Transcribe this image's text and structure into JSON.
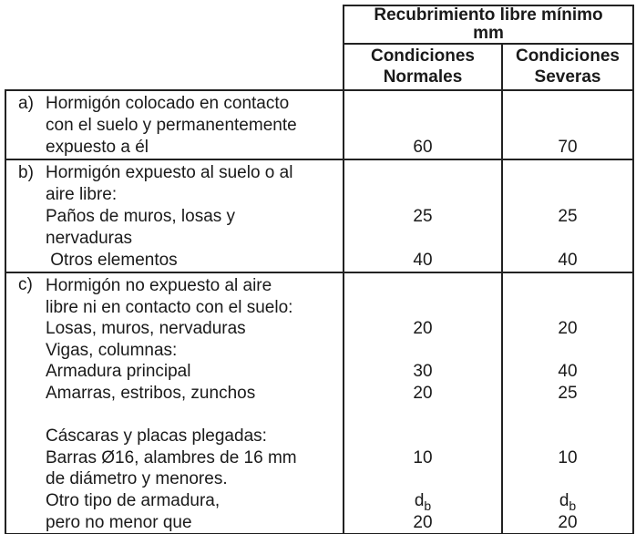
{
  "header": {
    "title_line1": "Recubrimiento libre mínimo",
    "title_line2": "mm",
    "normales_line1": "Condiciones",
    "normales_line2": "Normales",
    "severas_line1": "Condiciones",
    "severas_line2": "Severas"
  },
  "rows": [
    {
      "label": "a)",
      "lines": [
        {
          "text": "Hormigón colocado en contacto",
          "n": "",
          "s": ""
        },
        {
          "text": "con el suelo y permanentemente",
          "n": "",
          "s": ""
        },
        {
          "text": "expuesto a él",
          "n": "60",
          "s": "70"
        }
      ]
    },
    {
      "label": "b)",
      "lines": [
        {
          "text": "Hormigón expuesto al suelo o al",
          "n": "",
          "s": ""
        },
        {
          "text": "aire libre:",
          "n": "",
          "s": ""
        },
        {
          "text": "Paños de muros, losas y",
          "n": "25",
          "s": "25"
        },
        {
          "text": "nervaduras",
          "n": "",
          "s": ""
        },
        {
          "text": " Otros elementos",
          "n": "40",
          "s": "40"
        }
      ]
    },
    {
      "label": "c)",
      "lines": [
        {
          "text": "Hormigón no expuesto al aire",
          "n": "",
          "s": ""
        },
        {
          "text": "libre ni en contacto con el suelo:",
          "n": "",
          "s": ""
        },
        {
          "text": "Losas, muros, nervaduras",
          "n": "20",
          "s": "20"
        },
        {
          "text": "Vigas, columnas:",
          "n": "",
          "s": ""
        },
        {
          "text": "Armadura principal",
          "n": "30",
          "s": "40"
        },
        {
          "text": "Amarras, estribos, zunchos",
          "n": "20",
          "s": "25"
        },
        {
          "text": "",
          "n": "",
          "s": ""
        },
        {
          "text": "Cáscaras y placas plegadas:",
          "n": "",
          "s": ""
        },
        {
          "text": "Barras Ø16, alambres de 16 mm",
          "n": "10",
          "s": "10"
        },
        {
          "text": "de diámetro y menores.",
          "n": "",
          "s": ""
        },
        {
          "text": "Otro tipo de armadura,",
          "n": "d",
          "n_sub": "b",
          "s": "d",
          "s_sub": "b"
        },
        {
          "text": "pero no menor que",
          "n": "20",
          "s": "20"
        }
      ]
    }
  ]
}
